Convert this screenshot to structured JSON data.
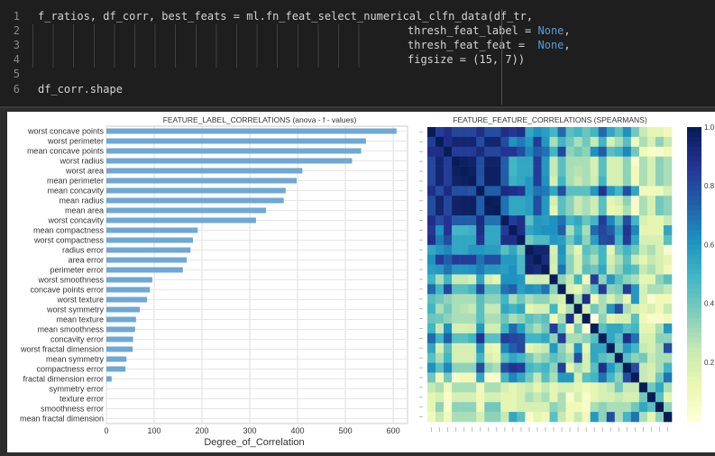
{
  "code_cell": {
    "lines": [
      {
        "num": "1",
        "text": "f_ratios, df_corr, best_feats = ml.fn_feat_select_numerical_clfn_data(df_tr,",
        "kw": ""
      },
      {
        "num": "2",
        "text": "thresh_feat_label = ",
        "kw": "None",
        "tail": ","
      },
      {
        "num": "3",
        "text": "thresh_feat_feat =  ",
        "kw": "None",
        "tail": ","
      },
      {
        "num": "4",
        "text": "figsize = (15, 7))",
        "kw": "",
        "tail": ""
      },
      {
        "num": "5",
        "text": "",
        "kw": "",
        "tail": ""
      },
      {
        "num": "6",
        "text": "df_corr.shape",
        "kw": "",
        "tail": ""
      }
    ]
  },
  "chart_data": [
    {
      "type": "bar",
      "orientation": "horizontal",
      "title": "FEATURE_LABEL_CORRELATIONS (anova - f - values)",
      "xlabel": "Degree_of_Correlation",
      "ylabel": "",
      "xlim": [
        0,
        630
      ],
      "xticks": [
        "0",
        "100",
        "200",
        "300",
        "400",
        "500",
        "600"
      ],
      "grid": true,
      "color": "#6fa8d2",
      "categories": [
        "worst concave points",
        "worst perimeter",
        "mean concave points",
        "worst radius",
        "worst area",
        "mean perimeter",
        "mean concavity",
        "mean radius",
        "mean area",
        "worst concavity",
        "mean compactness",
        "worst compactness",
        "radius error",
        "area error",
        "perimeter error",
        "worst smoothness",
        "concave points error",
        "worst texture",
        "worst symmetry",
        "mean texture",
        "mean smoothness",
        "concavity error",
        "worst fractal dimension",
        "mean symmetry",
        "compactness error",
        "fractal dimension error",
        "symmetry error",
        "texture error",
        "smoothness error",
        "mean fractal dimension"
      ],
      "values": [
        607,
        543,
        533,
        514,
        410,
        398,
        375,
        371,
        334,
        313,
        191,
        181,
        176,
        168,
        160,
        96,
        91,
        85,
        70,
        62,
        60,
        56,
        55,
        42,
        40,
        11,
        0.1,
        0.1,
        0.1,
        0.1
      ]
    },
    {
      "type": "heatmap",
      "title": "FEATURE_FEATURE_CORRELATIONS (SPEARMANS)",
      "colormap": "YlGnBu",
      "colorbar_ticks": [
        "1.0",
        "0.8",
        "0.6",
        "0.4",
        "0.2"
      ],
      "vmin": 0,
      "vmax": 1,
      "matrix": [
        [
          1,
          0.85,
          0.9,
          0.82,
          0.82,
          0.82,
          0.9,
          0.8,
          0.8,
          0.9,
          0.87,
          0.9,
          0.55,
          0.62,
          0.58,
          0.5,
          0.72,
          0.45,
          0.5,
          0.42,
          0.5,
          0.72,
          0.55,
          0.45,
          0.62,
          0.4,
          0.25,
          0.15,
          0.15,
          0.1
        ],
        [
          0.85,
          1,
          0.9,
          0.95,
          0.95,
          0.95,
          0.8,
          0.95,
          0.95,
          0.8,
          0.62,
          0.68,
          0.6,
          0.85,
          0.6,
          0.3,
          0.5,
          0.4,
          0.3,
          0.4,
          0.25,
          0.5,
          0.2,
          0.3,
          0.45,
          0.1,
          0.3,
          0.2,
          0.35,
          0.25
        ],
        [
          0.9,
          0.9,
          1,
          0.85,
          0.85,
          0.85,
          0.92,
          0.82,
          0.82,
          0.88,
          0.88,
          0.8,
          0.65,
          0.75,
          0.7,
          0.5,
          0.82,
          0.35,
          0.4,
          0.35,
          0.62,
          0.75,
          0.45,
          0.5,
          0.65,
          0.4,
          0.1,
          0.05,
          0.05,
          0.1
        ],
        [
          0.82,
          0.95,
          0.85,
          1,
          0.98,
          0.97,
          0.8,
          0.97,
          0.97,
          0.75,
          0.5,
          0.55,
          0.55,
          0.85,
          0.6,
          0.25,
          0.45,
          0.3,
          0.3,
          0.3,
          0.2,
          0.45,
          0.2,
          0.2,
          0.35,
          0.05,
          0.3,
          0.2,
          0.35,
          0.3
        ],
        [
          0.82,
          0.95,
          0.85,
          0.98,
          1,
          0.98,
          0.8,
          0.98,
          0.98,
          0.75,
          0.5,
          0.55,
          0.55,
          0.85,
          0.6,
          0.25,
          0.45,
          0.3,
          0.28,
          0.3,
          0.2,
          0.45,
          0.2,
          0.2,
          0.35,
          0.1,
          0.3,
          0.2,
          0.35,
          0.3
        ],
        [
          0.82,
          0.95,
          0.85,
          0.97,
          0.98,
          1,
          0.78,
          0.98,
          0.98,
          0.75,
          0.52,
          0.55,
          0.6,
          0.85,
          0.62,
          0.2,
          0.5,
          0.3,
          0.25,
          0.3,
          0.22,
          0.5,
          0.2,
          0.2,
          0.35,
          0.1,
          0.3,
          0.2,
          0.35,
          0.3
        ],
        [
          0.9,
          0.8,
          0.92,
          0.8,
          0.8,
          0.78,
          1,
          0.75,
          0.75,
          0.92,
          0.9,
          0.88,
          0.6,
          0.7,
          0.68,
          0.55,
          0.8,
          0.45,
          0.45,
          0.45,
          0.6,
          0.88,
          0.6,
          0.5,
          0.8,
          0.55,
          0.1,
          0.1,
          0.1,
          0.2
        ],
        [
          0.8,
          0.95,
          0.82,
          0.97,
          0.98,
          0.98,
          0.75,
          1,
          0.99,
          0.7,
          0.55,
          0.55,
          0.58,
          0.8,
          0.6,
          0.2,
          0.45,
          0.35,
          0.25,
          0.3,
          0.22,
          0.45,
          0.15,
          0.2,
          0.35,
          0.05,
          0.3,
          0.2,
          0.4,
          0.35
        ],
        [
          0.8,
          0.95,
          0.82,
          0.97,
          0.98,
          0.98,
          0.75,
          0.99,
          1,
          0.7,
          0.55,
          0.55,
          0.58,
          0.8,
          0.6,
          0.15,
          0.45,
          0.35,
          0.25,
          0.3,
          0.22,
          0.45,
          0.12,
          0.15,
          0.3,
          0.05,
          0.3,
          0.2,
          0.4,
          0.35
        ],
        [
          0.9,
          0.8,
          0.88,
          0.75,
          0.75,
          0.75,
          0.92,
          0.7,
          0.7,
          1,
          0.85,
          0.9,
          0.45,
          0.6,
          0.58,
          0.62,
          0.7,
          0.5,
          0.55,
          0.42,
          0.5,
          0.85,
          0.65,
          0.45,
          0.8,
          0.5,
          0.2,
          0.15,
          0.15,
          0.25
        ],
        [
          0.87,
          0.62,
          0.88,
          0.5,
          0.5,
          0.52,
          0.9,
          0.55,
          0.55,
          0.85,
          1,
          0.9,
          0.55,
          0.6,
          0.62,
          0.62,
          0.75,
          0.3,
          0.5,
          0.3,
          0.72,
          0.82,
          0.75,
          0.55,
          0.88,
          0.65,
          0.15,
          0.15,
          0.15,
          0.55
        ],
        [
          0.9,
          0.68,
          0.8,
          0.55,
          0.55,
          0.55,
          0.88,
          0.55,
          0.55,
          0.9,
          0.9,
          1,
          0.4,
          0.48,
          0.48,
          0.6,
          0.58,
          0.4,
          0.55,
          0.35,
          0.58,
          0.8,
          0.82,
          0.5,
          0.85,
          0.55,
          0.2,
          0.2,
          0.2,
          0.45
        ],
        [
          0.55,
          0.6,
          0.65,
          0.55,
          0.55,
          0.6,
          0.6,
          0.58,
          0.58,
          0.45,
          0.55,
          0.4,
          1,
          0.95,
          0.95,
          0.2,
          0.62,
          0.3,
          0.15,
          0.45,
          0.38,
          0.5,
          0.15,
          0.4,
          0.5,
          0.4,
          0.25,
          0.3,
          0.2,
          0.05
        ],
        [
          0.62,
          0.85,
          0.75,
          0.85,
          0.85,
          0.85,
          0.7,
          0.8,
          0.8,
          0.6,
          0.6,
          0.48,
          0.95,
          1,
          0.92,
          0.22,
          0.6,
          0.35,
          0.2,
          0.4,
          0.3,
          0.5,
          0.2,
          0.3,
          0.45,
          0.25,
          0.15,
          0.25,
          0.2,
          0.15
        ],
        [
          0.58,
          0.6,
          0.7,
          0.6,
          0.6,
          0.62,
          0.68,
          0.6,
          0.6,
          0.58,
          0.62,
          0.48,
          0.95,
          0.92,
          1,
          0.2,
          0.7,
          0.35,
          0.2,
          0.45,
          0.4,
          0.55,
          0.25,
          0.35,
          0.5,
          0.45,
          0.25,
          0.3,
          0.2,
          0.1
        ],
        [
          0.5,
          0.3,
          0.5,
          0.25,
          0.25,
          0.2,
          0.55,
          0.2,
          0.15,
          0.62,
          0.62,
          0.6,
          0.2,
          0.22,
          0.2,
          1,
          0.35,
          0.25,
          0.5,
          0.1,
          0.85,
          0.35,
          0.6,
          0.45,
          0.35,
          0.3,
          0.15,
          0.15,
          0.35,
          0.45
        ],
        [
          0.72,
          0.5,
          0.82,
          0.45,
          0.45,
          0.5,
          0.8,
          0.45,
          0.45,
          0.7,
          0.75,
          0.58,
          0.62,
          0.6,
          0.7,
          0.35,
          1,
          0.2,
          0.15,
          0.3,
          0.45,
          0.85,
          0.35,
          0.38,
          0.85,
          0.6,
          0.2,
          0.3,
          0.3,
          0.25
        ],
        [
          0.45,
          0.4,
          0.35,
          0.3,
          0.3,
          0.3,
          0.45,
          0.35,
          0.35,
          0.5,
          0.3,
          0.4,
          0.3,
          0.35,
          0.35,
          0.25,
          0.2,
          1,
          0.3,
          0.9,
          0.1,
          0.3,
          0.2,
          0.3,
          0.15,
          0.6,
          0.2,
          0.05,
          0.1,
          0.1
        ],
        [
          0.5,
          0.3,
          0.4,
          0.3,
          0.28,
          0.25,
          0.45,
          0.25,
          0.25,
          0.55,
          0.5,
          0.55,
          0.15,
          0.2,
          0.2,
          0.5,
          0.15,
          0.3,
          1,
          0.2,
          0.4,
          0.3,
          0.6,
          0.8,
          0.3,
          0.2,
          0.15,
          0.2,
          0.1,
          0.25
        ],
        [
          0.42,
          0.4,
          0.35,
          0.3,
          0.3,
          0.3,
          0.45,
          0.3,
          0.3,
          0.42,
          0.3,
          0.35,
          0.45,
          0.4,
          0.45,
          0.1,
          0.3,
          0.9,
          0.2,
          1,
          0,
          0.35,
          0.15,
          0.2,
          0.2,
          0.45,
          0.1,
          0.05,
          0.05,
          0.1
        ],
        [
          0.5,
          0.25,
          0.62,
          0.2,
          0.2,
          0.22,
          0.6,
          0.22,
          0.22,
          0.5,
          0.72,
          0.58,
          0.38,
          0.3,
          0.4,
          0.85,
          0.45,
          0.1,
          0.4,
          0,
          1,
          0.45,
          0.55,
          0.55,
          0.45,
          0.5,
          0.15,
          0.15,
          0.3,
          0.6
        ],
        [
          0.72,
          0.5,
          0.75,
          0.45,
          0.45,
          0.5,
          0.88,
          0.45,
          0.45,
          0.85,
          0.82,
          0.8,
          0.5,
          0.5,
          0.55,
          0.35,
          0.85,
          0.3,
          0.3,
          0.35,
          0.45,
          1,
          0.55,
          0.45,
          0.9,
          0.7,
          0.2,
          0.2,
          0.35,
          0.35
        ],
        [
          0.55,
          0.2,
          0.45,
          0.2,
          0.2,
          0.2,
          0.6,
          0.15,
          0.12,
          0.65,
          0.75,
          0.82,
          0.15,
          0.2,
          0.25,
          0.6,
          0.35,
          0.2,
          0.6,
          0.15,
          0.55,
          0.55,
          1,
          0.4,
          0.6,
          0.5,
          0.25,
          0.2,
          0.3,
          0.8
        ],
        [
          0.45,
          0.3,
          0.5,
          0.2,
          0.2,
          0.2,
          0.5,
          0.2,
          0.15,
          0.45,
          0.55,
          0.5,
          0.4,
          0.3,
          0.35,
          0.45,
          0.38,
          0.3,
          0.8,
          0.2,
          0.55,
          0.45,
          0.4,
          1,
          0.45,
          0.35,
          0.4,
          0.25,
          0.3,
          0.3
        ],
        [
          0.62,
          0.45,
          0.65,
          0.35,
          0.35,
          0.35,
          0.8,
          0.35,
          0.3,
          0.8,
          0.88,
          0.85,
          0.5,
          0.45,
          0.5,
          0.35,
          0.85,
          0.15,
          0.3,
          0.2,
          0.45,
          0.9,
          0.6,
          0.45,
          1,
          0.8,
          0.25,
          0.2,
          0.3,
          0.5
        ],
        [
          0.4,
          0.1,
          0.4,
          0.05,
          0.1,
          0.1,
          0.55,
          0.05,
          0.05,
          0.5,
          0.65,
          0.55,
          0.4,
          0.25,
          0.45,
          0.3,
          0.6,
          0.6,
          0.2,
          0.45,
          0.5,
          0.7,
          0.5,
          0.35,
          0.8,
          1,
          0.25,
          0.2,
          0.4,
          0.7
        ],
        [
          0.25,
          0.3,
          0.1,
          0.3,
          0.3,
          0.3,
          0.1,
          0.3,
          0.3,
          0.2,
          0.15,
          0.2,
          0.25,
          0.15,
          0.25,
          0.15,
          0.2,
          0.2,
          0.15,
          0.1,
          0.15,
          0.2,
          0.25,
          0.4,
          0.25,
          0.25,
          1,
          0.4,
          0.55,
          0.3
        ],
        [
          0.15,
          0.2,
          0.05,
          0.2,
          0.2,
          0.2,
          0.1,
          0.2,
          0.2,
          0.15,
          0.15,
          0.2,
          0.3,
          0.25,
          0.3,
          0.15,
          0.3,
          0.05,
          0.2,
          0.05,
          0.15,
          0.2,
          0.2,
          0.25,
          0.2,
          0.2,
          0.4,
          1,
          0.45,
          0.15
        ],
        [
          0.15,
          0.35,
          0.05,
          0.35,
          0.35,
          0.35,
          0.1,
          0.4,
          0.4,
          0.15,
          0.15,
          0.2,
          0.2,
          0.2,
          0.2,
          0.35,
          0.3,
          0.1,
          0.1,
          0.05,
          0.3,
          0.35,
          0.3,
          0.3,
          0.3,
          0.4,
          0.55,
          0.45,
          1,
          0.35
        ],
        [
          0.1,
          0.25,
          0.1,
          0.3,
          0.3,
          0.3,
          0.2,
          0.35,
          0.35,
          0.25,
          0.55,
          0.45,
          0.05,
          0.15,
          0.1,
          0.45,
          0.25,
          0.1,
          0.25,
          0.1,
          0.6,
          0.35,
          0.8,
          0.3,
          0.5,
          0.7,
          0.3,
          0.15,
          0.35,
          1
        ]
      ]
    }
  ]
}
